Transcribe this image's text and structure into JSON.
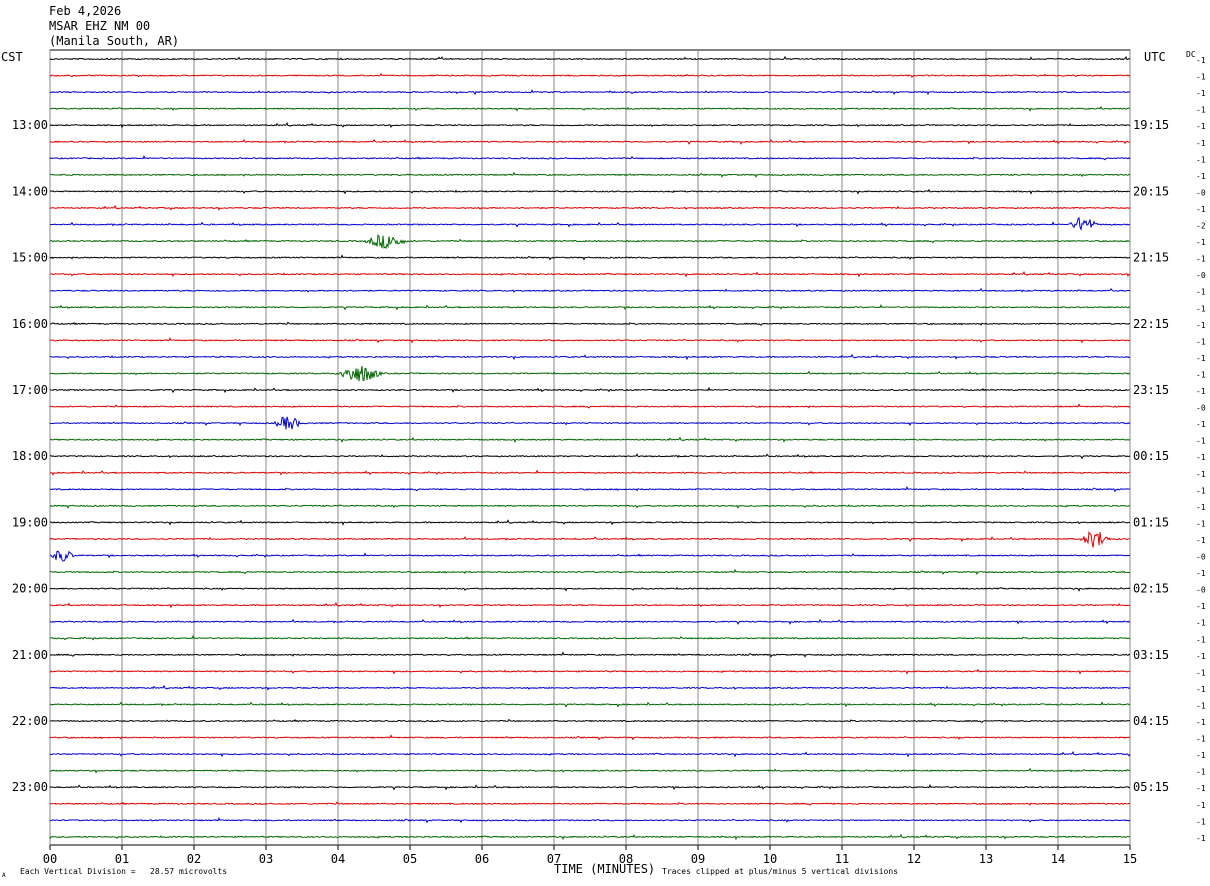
{
  "header": {
    "date": "Feb 4,2026",
    "station": "MSAR EHZ NM 00",
    "location": "(Manila South, AR)"
  },
  "left_tz": "CST",
  "right_tz": "UTC",
  "dc_label": "DC",
  "footer": {
    "scale_note": "Each Vertical Division =   28.57 microvolts",
    "clip_note": "Traces clipped at plus/minus 5 vertical divisions",
    "corner_mark": "A"
  },
  "chart_data": {
    "type": "line",
    "title": "",
    "xlabel": "TIME (MINUTES)",
    "ylabel": "",
    "xlim": [
      0,
      15
    ],
    "x_ticks": [
      "00",
      "01",
      "02",
      "03",
      "04",
      "05",
      "06",
      "07",
      "08",
      "09",
      "10",
      "11",
      "12",
      "13",
      "14",
      "15"
    ],
    "trace_colors": [
      "#000000",
      "#dd0000",
      "#0000cc",
      "#006600"
    ],
    "lines_per_hour": 4,
    "minutes_per_line": 15,
    "left_time_labels": [
      "13:00",
      "14:00",
      "15:00",
      "16:00",
      "17:00",
      "18:00",
      "19:00",
      "20:00",
      "21:00",
      "22:00",
      "23:00"
    ],
    "right_time_labels": [
      "19:15",
      "20:15",
      "21:15",
      "22:15",
      "23:15",
      "00:15",
      "01:15",
      "02:15",
      "03:15",
      "04:15",
      "05:15"
    ],
    "dc_offsets": [
      "-1",
      "-1",
      "-1",
      "-1",
      "-1",
      "-1",
      "-1",
      "-1",
      "-0",
      "-1",
      "-2",
      "-1",
      "-1",
      "-0",
      "-1",
      "-1",
      "-1",
      "-1",
      "-1",
      "-1",
      "-1",
      "-0",
      "-1",
      "-1",
      "-1",
      "-1",
      "-1",
      "-1",
      "-1",
      "-1",
      "-0",
      "-1",
      "-0",
      "-1",
      "-1",
      "-1",
      "-1",
      "-1",
      "-1",
      "-1",
      "-1",
      "-1",
      "-1",
      "-1",
      "-1",
      "-1",
      "-1",
      "-1"
    ],
    "events": [
      {
        "trace": 10,
        "start_min": 14.15,
        "end_min": 14.8,
        "amplitude_div": 2.2
      },
      {
        "trace": 11,
        "start_min": 4.35,
        "end_min": 5.35,
        "amplitude_div": 2.0
      },
      {
        "trace": 19,
        "start_min": 3.95,
        "end_min": 5.05,
        "amplitude_div": 2.5
      },
      {
        "trace": 22,
        "start_min": 3.1,
        "end_min": 3.75,
        "amplitude_div": 2.0
      },
      {
        "trace": 29,
        "start_min": 14.3,
        "end_min": 15.0,
        "amplitude_div": 2.5
      },
      {
        "trace": 30,
        "start_min": 0.0,
        "end_min": 0.55,
        "amplitude_div": 1.8
      }
    ]
  }
}
